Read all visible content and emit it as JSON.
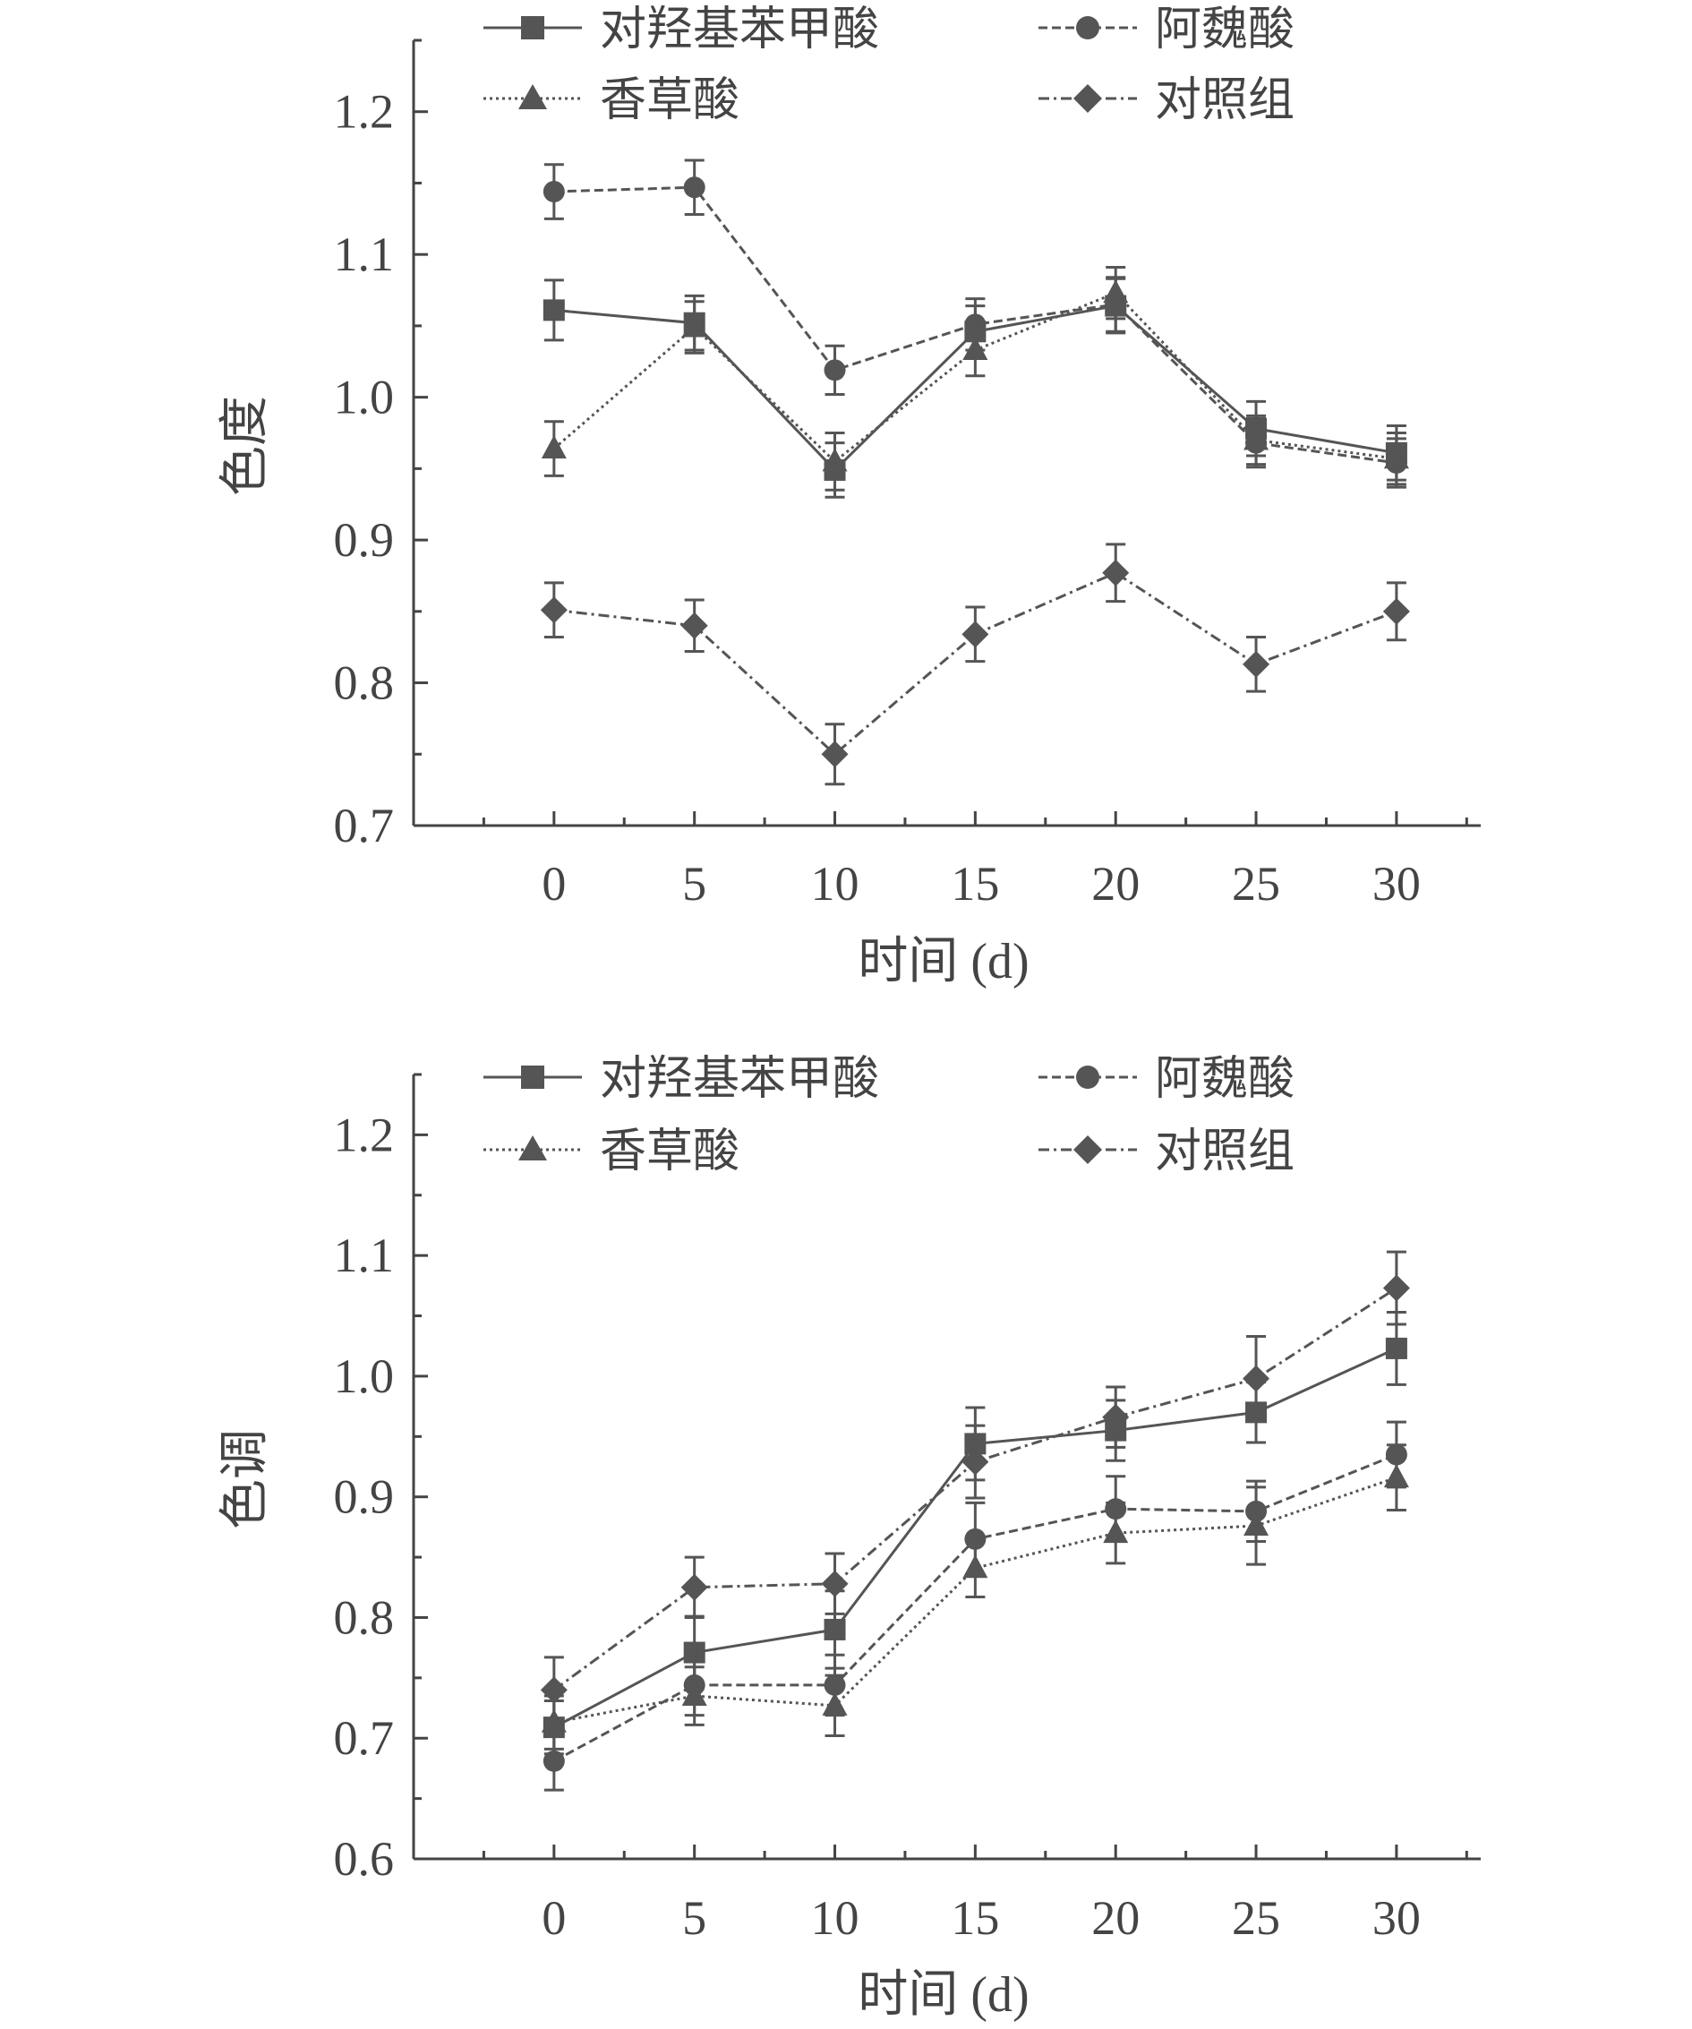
{
  "chart_data": [
    {
      "type": "line",
      "title": "",
      "xlabel": "时间 (d)",
      "ylabel": "色度",
      "x": [
        0,
        5,
        10,
        15,
        20,
        25,
        30
      ],
      "xlim": [
        -5,
        33
      ],
      "ylim": [
        0.7,
        1.25
      ],
      "yticks": [
        "0.7",
        "0.8",
        "0.9",
        "1.0",
        "1.1",
        "1.2"
      ],
      "ytick_values": [
        0.7,
        0.8,
        0.9,
        1.0,
        1.1,
        1.2
      ],
      "xticks": [
        "0",
        "5",
        "10",
        "15",
        "20",
        "25",
        "30"
      ],
      "series": [
        {
          "name": "对羟基苯甲酸",
          "marker": "square",
          "dash": "solid",
          "values": [
            1.061,
            1.052,
            0.949,
            1.046,
            1.064,
            0.978,
            0.961
          ],
          "errors": [
            0.021,
            0.019,
            0.019,
            0.018,
            0.019,
            0.019,
            0.019
          ]
        },
        {
          "name": "阿魏酸",
          "marker": "circle",
          "dash": "dashed",
          "values": [
            1.144,
            1.147,
            1.019,
            1.051,
            1.065,
            0.968,
            0.954
          ],
          "errors": [
            0.019,
            0.019,
            0.017,
            0.018,
            0.019,
            0.017,
            0.017
          ]
        },
        {
          "name": "香草酸",
          "marker": "triangle",
          "dash": "dotted",
          "values": [
            0.964,
            1.049,
            0.955,
            1.033,
            1.073,
            0.97,
            0.957
          ],
          "errors": [
            0.019,
            0.018,
            0.02,
            0.018,
            0.018,
            0.017,
            0.018
          ]
        },
        {
          "name": "对照组",
          "marker": "diamond",
          "dash": "dashdot",
          "values": [
            0.851,
            0.84,
            0.75,
            0.834,
            0.877,
            0.813,
            0.85
          ],
          "errors": [
            0.019,
            0.018,
            0.021,
            0.019,
            0.02,
            0.019,
            0.02
          ]
        }
      ],
      "legend_position": "top"
    },
    {
      "type": "line",
      "title": "",
      "xlabel": "时间 (d)",
      "ylabel": "色调",
      "x": [
        0,
        5,
        10,
        15,
        20,
        25,
        30
      ],
      "xlim": [
        -5,
        33
      ],
      "ylim": [
        0.6,
        1.25
      ],
      "yticks": [
        "0.6",
        "0.7",
        "0.8",
        "0.9",
        "1.0",
        "1.1",
        "1.2"
      ],
      "ytick_values": [
        0.6,
        0.7,
        0.8,
        0.9,
        1.0,
        1.1,
        1.2
      ],
      "xticks": [
        "0",
        "5",
        "10",
        "15",
        "20",
        "25",
        "30"
      ],
      "series": [
        {
          "name": "对羟基苯甲酸",
          "marker": "square",
          "dash": "solid",
          "values": [
            0.709,
            0.771,
            0.79,
            0.944,
            0.955,
            0.97,
            1.023
          ],
          "errors": [
            0.022,
            0.03,
            0.032,
            0.03,
            0.025,
            0.025,
            0.03
          ]
        },
        {
          "name": "阿魏酸",
          "marker": "circle",
          "dash": "dashed",
          "values": [
            0.681,
            0.744,
            0.744,
            0.865,
            0.89,
            0.888,
            0.935
          ],
          "errors": [
            0.024,
            0.025,
            0.025,
            0.03,
            0.027,
            0.025,
            0.027
          ]
        },
        {
          "name": "香草酸",
          "marker": "triangle",
          "dash": "dotted",
          "values": [
            0.713,
            0.735,
            0.727,
            0.841,
            0.87,
            0.876,
            0.916
          ],
          "errors": [
            0.022,
            0.024,
            0.025,
            0.024,
            0.025,
            0.032,
            0.027
          ]
        },
        {
          "name": "对照组",
          "marker": "diamond",
          "dash": "dashdot",
          "values": [
            0.74,
            0.825,
            0.828,
            0.929,
            0.966,
            0.998,
            1.073
          ],
          "errors": [
            0.027,
            0.025,
            0.025,
            0.03,
            0.025,
            0.035,
            0.03
          ]
        }
      ],
      "legend_position": "top"
    }
  ],
  "colors": {
    "line": "#555555",
    "axis": "#444444"
  }
}
